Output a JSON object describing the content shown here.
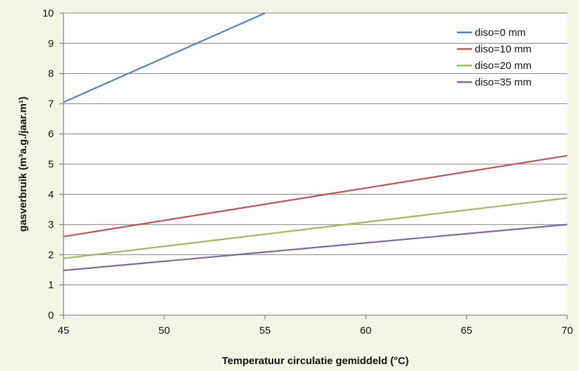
{
  "chart_data": {
    "type": "line",
    "title": "",
    "xlabel": "Temperatuur circulatie gemiddeld (°C)",
    "ylabel": "gasverbruik (m³a.g./jaar.m¹)",
    "xlim": [
      45,
      70
    ],
    "ylim": [
      0,
      10
    ],
    "xticks": [
      45,
      50,
      55,
      60,
      65,
      70
    ],
    "yticks": [
      0,
      1,
      2,
      3,
      4,
      5,
      6,
      7,
      8,
      9,
      10
    ],
    "grid": "horizontal",
    "legend": "top-right",
    "series": [
      {
        "name": "diso=0 mm",
        "color": "#4f81bd",
        "x": [
          45,
          55
        ],
        "y": [
          7.05,
          10.0
        ]
      },
      {
        "name": "diso=10 mm",
        "color": "#c0504d",
        "x": [
          45,
          70
        ],
        "y": [
          2.6,
          5.28
        ]
      },
      {
        "name": "diso=20 mm",
        "color": "#9bbb59",
        "x": [
          45,
          70
        ],
        "y": [
          1.88,
          3.88
        ]
      },
      {
        "name": "diso=35 mm",
        "color": "#8064a2",
        "x": [
          45,
          70
        ],
        "y": [
          1.48,
          3.0
        ]
      }
    ]
  }
}
